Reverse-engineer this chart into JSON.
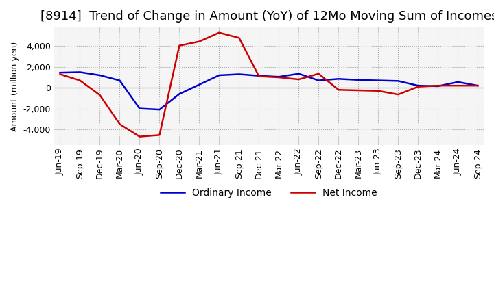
{
  "title": "[8914]  Trend of Change in Amount (YoY) of 12Mo Moving Sum of Incomes",
  "ylabel": "Amount (million yen)",
  "background_color": "#ffffff",
  "plot_bg_color": "#f5f5f5",
  "grid_color": "#aaaaaa",
  "ordinary_income_color": "#0000cc",
  "net_income_color": "#cc0000",
  "x_labels": [
    "Jun-19",
    "Sep-19",
    "Dec-19",
    "Mar-20",
    "Jun-20",
    "Sep-20",
    "Dec-20",
    "Mar-21",
    "Jun-21",
    "Sep-21",
    "Dec-21",
    "Mar-22",
    "Jun-22",
    "Sep-22",
    "Dec-22",
    "Mar-23",
    "Jun-23",
    "Sep-23",
    "Dec-23",
    "Mar-24",
    "Jun-24",
    "Sep-24"
  ],
  "ordinary_income": [
    1450,
    1500,
    1200,
    700,
    -2000,
    -2100,
    -600,
    300,
    1200,
    1300,
    1150,
    1050,
    1350,
    700,
    850,
    750,
    700,
    650,
    200,
    150,
    550,
    200
  ],
  "net_income": [
    1300,
    700,
    -700,
    -3500,
    -4700,
    -4550,
    4050,
    4450,
    5300,
    4800,
    1100,
    1000,
    800,
    1350,
    -200,
    -250,
    -300,
    -650,
    100,
    200,
    200,
    200
  ],
  "ylim": [
    -5500,
    5800
  ],
  "yticks": [
    -4000,
    -2000,
    0,
    2000,
    4000
  ],
  "title_fontsize": 13,
  "axis_fontsize": 9,
  "tick_fontsize": 9
}
